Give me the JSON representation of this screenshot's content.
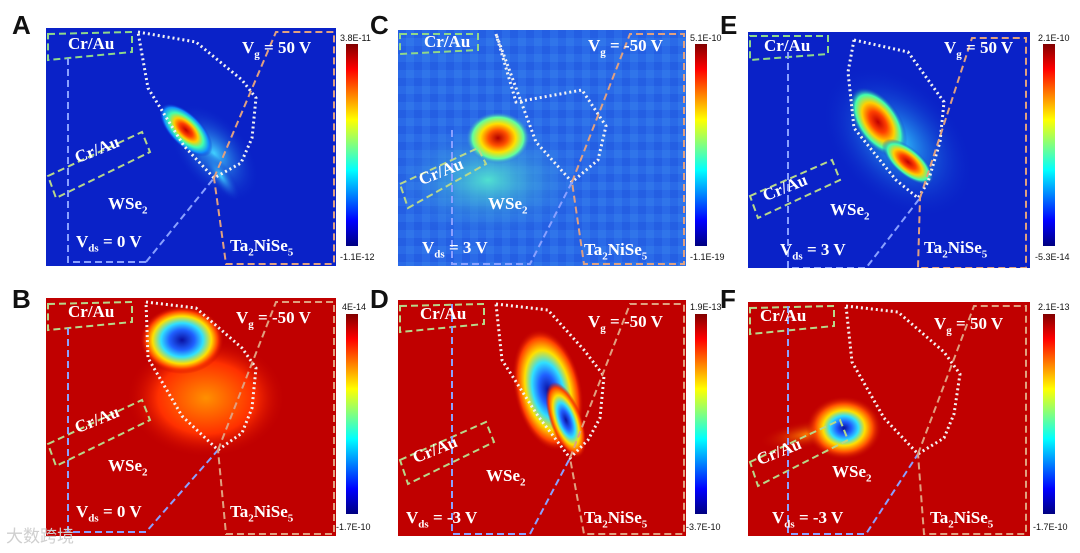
{
  "panels": [
    {
      "letter": "A",
      "vg_prefix": "V",
      "vg_sub": "g",
      "vg_val": " = 50 V",
      "vds_prefix": "V",
      "vds_sub": "ds",
      "vds_val": " = 0 V",
      "cbar_max": "3.8E-11",
      "cbar_min": "-1.1E-12",
      "cr_top": "Cr/Au",
      "cr_mid": "Cr/Au",
      "wse": "WSe",
      "wse_sub": "2",
      "ta": "Ta",
      "ta_sub1": "2",
      "ta_mid": "NiSe",
      "ta_sub2": "5",
      "colormap": "jet"
    },
    {
      "letter": "B",
      "vg_prefix": "V",
      "vg_sub": "g",
      "vg_val": " = -50 V",
      "vds_prefix": "V",
      "vds_sub": "ds",
      "vds_val": " = 0 V",
      "cbar_max": "4E-14",
      "cbar_min": "-1.7E-10",
      "cr_top": "Cr/Au",
      "cr_mid": "Cr/Au",
      "wse": "WSe",
      "wse_sub": "2",
      "ta": "Ta",
      "ta_sub1": "2",
      "ta_mid": "NiSe",
      "ta_sub2": "5",
      "colormap": "jet"
    },
    {
      "letter": "C",
      "vg_prefix": "V",
      "vg_sub": "g",
      "vg_val": " = -50 V",
      "vds_prefix": "V",
      "vds_sub": "ds",
      "vds_val": " = 3 V",
      "cbar_max": "5.1E-10",
      "cbar_min": "-1.1E-19",
      "cr_top": "Cr/Au",
      "cr_mid": "Cr/Au",
      "wse": "WSe",
      "wse_sub": "2",
      "ta": "Ta",
      "ta_sub1": "2",
      "ta_mid": "NiSe",
      "ta_sub2": "5",
      "colormap": "jet"
    },
    {
      "letter": "D",
      "vg_prefix": "V",
      "vg_sub": "g",
      "vg_val": " = -50 V",
      "vds_prefix": "V",
      "vds_sub": "ds",
      "vds_val": " = -3 V",
      "cbar_max": "1.9E-13",
      "cbar_min": "-3.7E-10",
      "cr_top": "Cr/Au",
      "cr_mid": "Cr/Au",
      "wse": "WSe",
      "wse_sub": "2",
      "ta": "Ta",
      "ta_sub1": "2",
      "ta_mid": "NiSe",
      "ta_sub2": "5",
      "colormap": "jet"
    },
    {
      "letter": "E",
      "vg_prefix": "V",
      "vg_sub": "g",
      "vg_val": " = 50 V",
      "vds_prefix": "V",
      "vds_sub": "ds",
      "vds_val": " = 3 V",
      "cbar_max": "2.1E-10",
      "cbar_min": "-5.3E-14",
      "cr_top": "Cr/Au",
      "cr_mid": "Cr/Au",
      "wse": "WSe",
      "wse_sub": "2",
      "ta": "Ta",
      "ta_sub1": "2",
      "ta_mid": "NiSe",
      "ta_sub2": "5",
      "colormap": "jet"
    },
    {
      "letter": "F",
      "vg_prefix": "V",
      "vg_sub": "g",
      "vg_val": " = 50 V",
      "vds_prefix": "V",
      "vds_sub": "ds",
      "vds_val": " = -3 V",
      "cbar_max": "2.1E-13",
      "cbar_min": "-1.7E-10",
      "cr_top": "Cr/Au",
      "cr_mid": "Cr/Au",
      "wse": "WSe",
      "wse_sub": "2",
      "ta": "Ta",
      "ta_sub1": "2",
      "ta_mid": "NiSe",
      "ta_sub2": "5",
      "colormap": "jet"
    }
  ],
  "watermark": "大数跨境"
}
